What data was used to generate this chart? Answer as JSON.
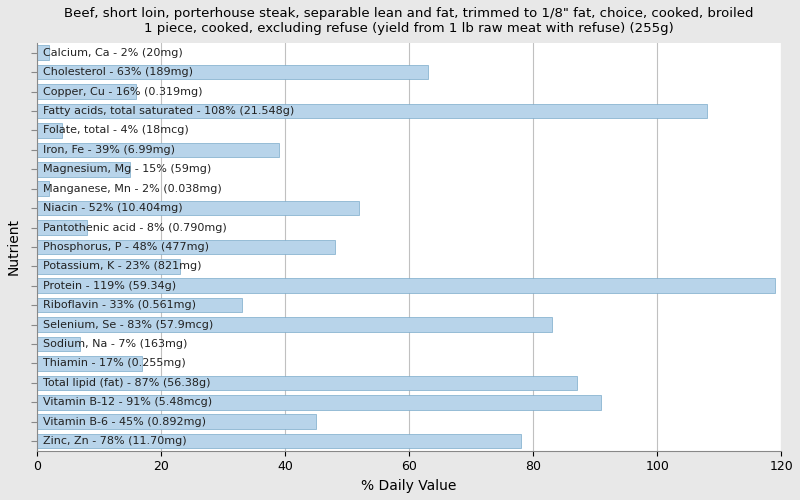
{
  "title": "Beef, short loin, porterhouse steak, separable lean and fat, trimmed to 1/8\" fat, choice, cooked, broiled\n1 piece, cooked, excluding refuse (yield from 1 lb raw meat with refuse) (255g)",
  "xlabel": "% Daily Value",
  "ylabel": "Nutrient",
  "nutrients": [
    "Calcium, Ca - 2% (20mg)",
    "Cholesterol - 63% (189mg)",
    "Copper, Cu - 16% (0.319mg)",
    "Fatty acids, total saturated - 108% (21.548g)",
    "Folate, total - 4% (18mcg)",
    "Iron, Fe - 39% (6.99mg)",
    "Magnesium, Mg - 15% (59mg)",
    "Manganese, Mn - 2% (0.038mg)",
    "Niacin - 52% (10.404mg)",
    "Pantothenic acid - 8% (0.790mg)",
    "Phosphorus, P - 48% (477mg)",
    "Potassium, K - 23% (821mg)",
    "Protein - 119% (59.34g)",
    "Riboflavin - 33% (0.561mg)",
    "Selenium, Se - 83% (57.9mcg)",
    "Sodium, Na - 7% (163mg)",
    "Thiamin - 17% (0.255mg)",
    "Total lipid (fat) - 87% (56.38g)",
    "Vitamin B-12 - 91% (5.48mcg)",
    "Vitamin B-6 - 45% (0.892mg)",
    "Zinc, Zn - 78% (11.70mg)"
  ],
  "values": [
    2,
    63,
    16,
    108,
    4,
    39,
    15,
    2,
    52,
    8,
    48,
    23,
    119,
    33,
    83,
    7,
    17,
    87,
    91,
    45,
    78
  ],
  "bar_color": "#b8d4ea",
  "bar_edge_color": "#7aaaca",
  "background_color": "#e8e8e8",
  "plot_background_color": "#ffffff",
  "title_fontsize": 9.5,
  "axis_label_fontsize": 10,
  "tick_fontsize": 9,
  "bar_label_fontsize": 8,
  "xlim": [
    0,
    120
  ],
  "xticks": [
    0,
    20,
    40,
    60,
    80,
    100,
    120
  ],
  "grid_color": "#c0c0c0"
}
